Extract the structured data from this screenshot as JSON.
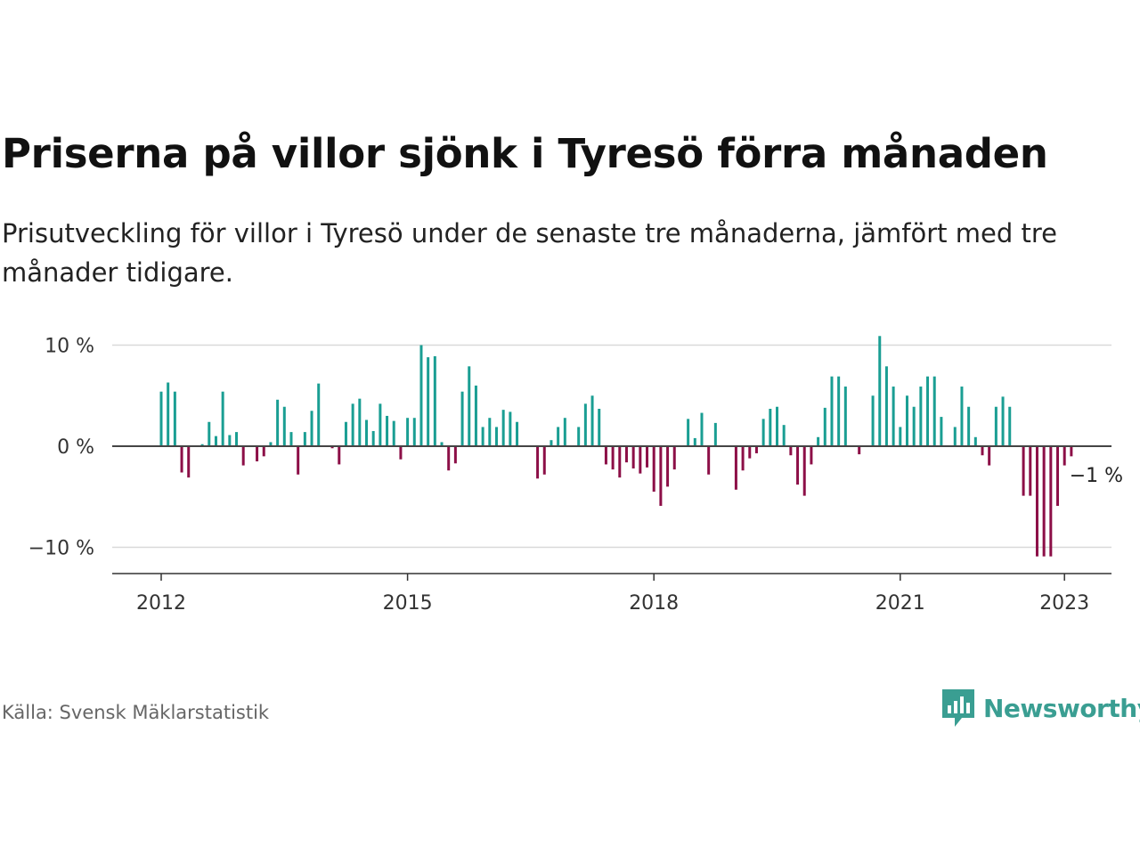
{
  "title": "Priserna på villor sjönk i Tyresö förra månaden",
  "subtitle": "Prisutveckling för villor i Tyresö under de senaste tre månaderna, jämfört med tre månader tidigare.",
  "source": "Källa: Svensk Mäklarstatistik",
  "brand": "Newsworthy",
  "colors": {
    "positive": "#1a9e93",
    "negative": "#8c0f47",
    "brand": "#3a9e92",
    "grid": "#d9d9d9",
    "axis": "#333333"
  },
  "chart_data": {
    "type": "bar",
    "x_start": "2012-01",
    "interval": "month",
    "ylim": [
      -12.5,
      12.5
    ],
    "yticks": [
      10,
      0,
      -10
    ],
    "ytick_labels": [
      "10 %",
      "0 %",
      "−10 %"
    ],
    "xticks": [
      "2012-01",
      "2015-01",
      "2018-01",
      "2021-01",
      "2023-01"
    ],
    "xtick_labels": [
      "2012",
      "2015",
      "2018",
      "2021",
      "2023"
    ],
    "grid": true,
    "values": [
      5.4,
      6.3,
      5.4,
      -2.6,
      -3.1,
      0,
      0.2,
      2.4,
      1.0,
      5.4,
      1.1,
      1.4,
      -1.9,
      0,
      -1.5,
      -1.0,
      0.4,
      4.6,
      3.9,
      1.4,
      -2.8,
      1.4,
      3.5,
      6.2,
      0,
      -0.2,
      -1.8,
      2.4,
      4.2,
      4.7,
      2.6,
      1.5,
      4.2,
      3.0,
      2.5,
      -1.3,
      2.8,
      2.8,
      10.0,
      8.8,
      8.9,
      0.4,
      -2.4,
      -1.7,
      5.4,
      7.9,
      6.0,
      1.9,
      2.8,
      1.9,
      3.6,
      3.4,
      2.4,
      0,
      0,
      -3.2,
      -2.8,
      0.6,
      1.9,
      2.8,
      0,
      1.9,
      4.2,
      5.0,
      3.7,
      -1.8,
      -2.3,
      -3.1,
      -1.6,
      -2.2,
      -2.7,
      -2.1,
      -4.5,
      -5.9,
      -4.0,
      -2.3,
      0,
      2.7,
      0.8,
      3.3,
      -2.8,
      2.3,
      0,
      0,
      -4.3,
      -2.4,
      -1.2,
      -0.7,
      2.7,
      3.7,
      3.9,
      2.1,
      -0.9,
      -3.8,
      -4.9,
      -1.8,
      0.9,
      3.8,
      6.9,
      6.9,
      5.9,
      0,
      -0.8,
      0,
      5.0,
      10.9,
      7.9,
      5.9,
      1.9,
      5.0,
      3.9,
      5.9,
      6.9,
      6.9,
      2.9,
      0,
      1.9,
      5.9,
      3.9,
      0.9,
      -0.9,
      -1.9,
      3.9,
      4.9,
      3.9,
      0,
      -4.9,
      -4.9,
      -10.9,
      -10.9,
      -10.9,
      -5.9,
      -1.9,
      -1.0
    ],
    "last_value_label": "−1 %"
  }
}
